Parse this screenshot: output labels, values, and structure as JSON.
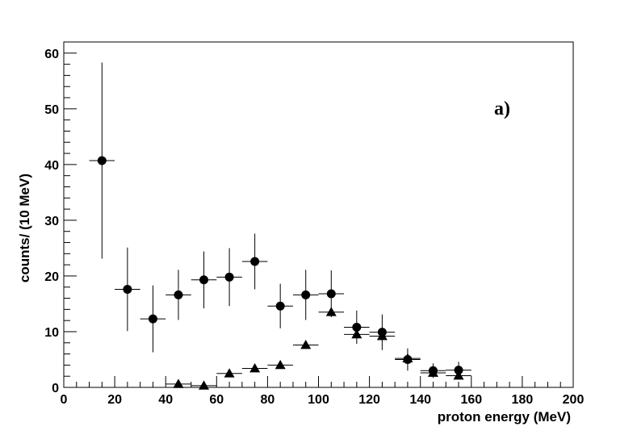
{
  "chart_data": {
    "type": "scatter",
    "xlabel": "proton energy (MeV)",
    "ylabel": "counts/ (10 MeV)",
    "annotation": "a)",
    "xlim": [
      0,
      200
    ],
    "ylim": [
      0,
      62
    ],
    "x_ticks": [
      0,
      20,
      40,
      60,
      80,
      100,
      120,
      140,
      160,
      180,
      200
    ],
    "y_ticks": [
      0,
      10,
      20,
      30,
      40,
      50,
      60
    ],
    "x_minor_step": 5,
    "y_minor_step": 2,
    "x_bin_half_width": 5,
    "grid": false,
    "series": [
      {
        "marker": "circle",
        "points": [
          {
            "x": 15,
            "y": 40.7,
            "err": 17.6
          },
          {
            "x": 25,
            "y": 17.6,
            "err": 7.5
          },
          {
            "x": 35,
            "y": 12.3,
            "err": 6.0
          },
          {
            "x": 45,
            "y": 16.6,
            "err": 4.5
          },
          {
            "x": 55,
            "y": 19.3,
            "err": 5.1
          },
          {
            "x": 65,
            "y": 19.8,
            "err": 5.2
          },
          {
            "x": 75,
            "y": 22.6,
            "err": 5.0
          },
          {
            "x": 85,
            "y": 14.6,
            "err": 4.0
          },
          {
            "x": 95,
            "y": 16.6,
            "err": 4.5
          },
          {
            "x": 105,
            "y": 16.8,
            "err": 4.2
          },
          {
            "x": 115,
            "y": 10.8,
            "err": 3.0
          },
          {
            "x": 125,
            "y": 9.9,
            "err": 3.2
          },
          {
            "x": 135,
            "y": 5.0,
            "err": 2.0
          },
          {
            "x": 145,
            "y": 3.0,
            "err": 1.3
          },
          {
            "x": 155,
            "y": 3.1,
            "err": 1.5
          }
        ]
      },
      {
        "marker": "triangle",
        "points": [
          {
            "x": 45,
            "y": 0.6,
            "err": 0
          },
          {
            "x": 55,
            "y": 0.3,
            "err": 0
          },
          {
            "x": 65,
            "y": 2.5,
            "err": 0
          },
          {
            "x": 75,
            "y": 3.4,
            "err": 0
          },
          {
            "x": 85,
            "y": 4.0,
            "err": 0
          },
          {
            "x": 95,
            "y": 7.6,
            "err": 0
          },
          {
            "x": 105,
            "y": 13.5,
            "err": 0
          },
          {
            "x": 115,
            "y": 9.5,
            "err": 0
          },
          {
            "x": 125,
            "y": 9.2,
            "err": 0
          },
          {
            "x": 135,
            "y": 5.2,
            "err": 0
          },
          {
            "x": 145,
            "y": 2.6,
            "err": 0
          },
          {
            "x": 155,
            "y": 2.1,
            "err": 0
          }
        ]
      }
    ]
  }
}
